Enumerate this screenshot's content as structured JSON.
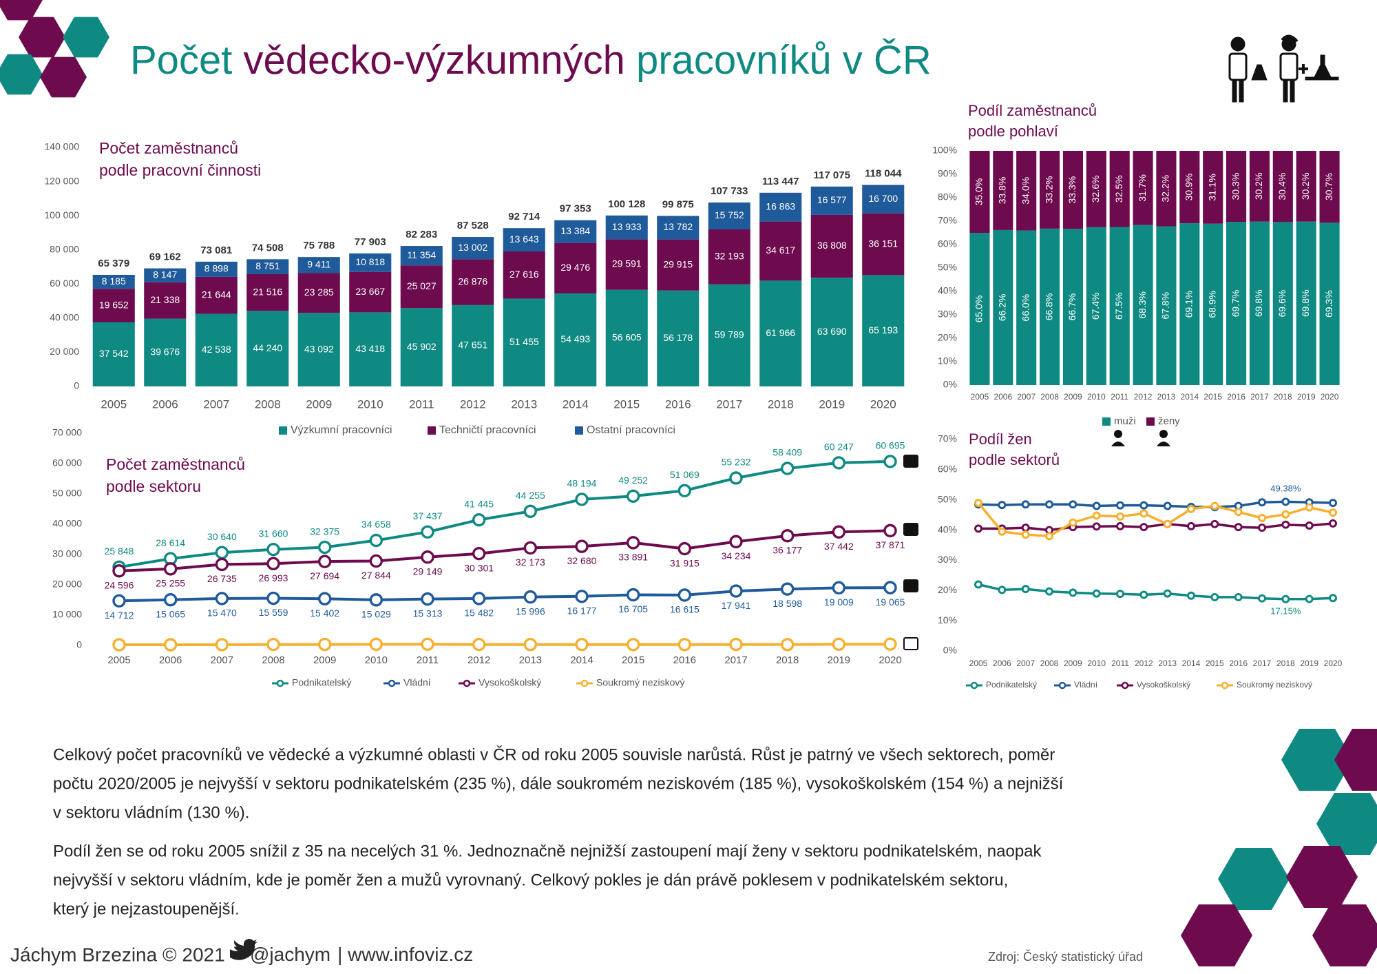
{
  "title_parts": [
    "Počet ",
    "vědecko-výzkumných",
    " pracovníků v ČR"
  ],
  "chart_data": [
    {
      "type": "stacked_bar",
      "title": [
        "Počet zaměstnanců",
        "podle pracovní činnosti"
      ],
      "categories": [
        "2005",
        "2006",
        "2007",
        "2008",
        "2009",
        "2010",
        "2011",
        "2012",
        "2013",
        "2014",
        "2015",
        "2016",
        "2017",
        "2018",
        "2019",
        "2020"
      ],
      "series": [
        {
          "name": "Výzkumní pracovníci",
          "color": "#0f8a83",
          "values": [
            37542,
            39676,
            42538,
            44240,
            43092,
            43418,
            45902,
            47651,
            51455,
            54493,
            56605,
            56178,
            59789,
            61966,
            63690,
            65193
          ],
          "value_labels": [
            "37 542",
            "39 676",
            "42 538",
            "44 240",
            "43 092",
            "43 418",
            "45 902",
            "47 651",
            "51 455",
            "54 493",
            "56 605",
            "56 178",
            "59 789",
            "61 966",
            "63 690",
            "65 193"
          ]
        },
        {
          "name": "Techničtí pracovníci",
          "color": "#6d0b4e",
          "values": [
            19652,
            21338,
            21644,
            21516,
            23285,
            23667,
            25027,
            26876,
            27616,
            29476,
            29591,
            29915,
            32193,
            34617,
            36808,
            36151
          ],
          "value_labels": [
            "19 652",
            "21 338",
            "21 644",
            "21 516",
            "23 285",
            "23 667",
            "25 027",
            "26 876",
            "27 616",
            "29 476",
            "29 591",
            "29 915",
            "32 193",
            "34 617",
            "36 808",
            "36 151"
          ]
        },
        {
          "name": "Ostatní pracovníci",
          "color": "#1f5a9a",
          "values": [
            8185,
            8147,
            8898,
            8751,
            9411,
            10818,
            11354,
            13002,
            13643,
            13384,
            13933,
            13782,
            15752,
            16863,
            16577,
            16700
          ],
          "value_labels": [
            "8 185",
            "8 147",
            "8 898",
            "8 751",
            "9 411",
            "10 818",
            "11 354",
            "13 002",
            "13 643",
            "13 384",
            "13 933",
            "13 782",
            "15 752",
            "16 863",
            "16 577",
            "16 700"
          ]
        }
      ],
      "totals": [
        65379,
        69162,
        73081,
        74508,
        75788,
        77903,
        82283,
        87528,
        92714,
        97353,
        100128,
        99875,
        107733,
        113447,
        117075,
        118044
      ],
      "total_labels": [
        "65 379",
        "69 162",
        "73 081",
        "74 508",
        "75 788",
        "77 903",
        "82 283",
        "87 528",
        "92 714",
        "97 353",
        "100 128",
        "99 875",
        "107 733",
        "113 447",
        "117 075",
        "118 044"
      ],
      "ylim": [
        0,
        140000
      ],
      "yticks": [
        0,
        {
          "value": 20000,
          "label": "20 000"
        },
        {
          "value": 40000,
          "label": "40 000"
        },
        {
          "value": 60000,
          "label": "60 000"
        },
        {
          "value": 80000,
          "label": "80 000"
        },
        {
          "value": 100000,
          "label": "100 000"
        },
        {
          "value": 120000,
          "label": "120 000"
        },
        {
          "value": 140000,
          "label": "140 000"
        }
      ],
      "legend": "bottom"
    },
    {
      "type": "stacked_percent_bar",
      "title": [
        "Podíl zaměstnanců",
        "podle pohlaví"
      ],
      "categories": [
        "2005",
        "2006",
        "2007",
        "2008",
        "2009",
        "2010",
        "2011",
        "2012",
        "2013",
        "2014",
        "2015",
        "2016",
        "2017",
        "2018",
        "2019",
        "2020"
      ],
      "series": [
        {
          "name": "muži",
          "color": "#0f8a83",
          "values": [
            65.0,
            66.2,
            66.0,
            66.8,
            66.7,
            67.4,
            67.5,
            68.3,
            67.8,
            69.1,
            68.9,
            69.7,
            69.8,
            69.6,
            69.8,
            69.3
          ],
          "value_labels": [
            "65.0%",
            "66.2%",
            "66.0%",
            "66.8%",
            "66.7%",
            "67.4%",
            "67.5%",
            "68.3%",
            "67.8%",
            "69.1%",
            "68.9%",
            "69.7%",
            "69.8%",
            "69.6%",
            "69.8%",
            "69.3%"
          ]
        },
        {
          "name": "ženy",
          "color": "#6d0b4e",
          "values": [
            35.0,
            33.8,
            34.0,
            33.2,
            33.3,
            32.6,
            32.5,
            31.7,
            32.2,
            30.9,
            31.1,
            30.3,
            30.2,
            30.4,
            30.2,
            30.7
          ],
          "value_labels": [
            "35.0%",
            "33.8%",
            "34.0%",
            "33.2%",
            "33.3%",
            "32.6%",
            "32.5%",
            "31.7%",
            "32.2%",
            "30.9%",
            "31.1%",
            "30.3%",
            "30.2%",
            "30.4%",
            "30.2%",
            "30.7%"
          ]
        }
      ],
      "ylim": [
        0,
        100
      ],
      "yticks": [
        {
          "value": 0,
          "label": "0%"
        },
        {
          "value": 10,
          "label": "10%"
        },
        {
          "value": 20,
          "label": "20%"
        },
        {
          "value": 30,
          "label": "30%"
        },
        {
          "value": 40,
          "label": "40%"
        },
        {
          "value": 50,
          "label": "50%"
        },
        {
          "value": 60,
          "label": "60%"
        },
        {
          "value": 70,
          "label": "70%"
        },
        {
          "value": 80,
          "label": "80%"
        },
        {
          "value": 90,
          "label": "90%"
        },
        {
          "value": 100,
          "label": "100%"
        }
      ],
      "legend": "bottom"
    },
    {
      "type": "line",
      "title": [
        "Počet zaměstnanců",
        "podle sektoru"
      ],
      "categories": [
        "2005",
        "2006",
        "2007",
        "2008",
        "2009",
        "2010",
        "2011",
        "2012",
        "2013",
        "2014",
        "2015",
        "2016",
        "2017",
        "2018",
        "2019",
        "2020"
      ],
      "series": [
        {
          "name": "Podnikatelský",
          "color": "#0f8a83",
          "values": [
            25848,
            28614,
            30640,
            31660,
            32375,
            34658,
            37437,
            41445,
            44255,
            48194,
            49252,
            51069,
            55232,
            58409,
            60247,
            60695
          ],
          "value_labels": [
            "25 848",
            "28 614",
            "30 640",
            "31 660",
            "32 375",
            "34 658",
            "37 437",
            "41 445",
            "44 255",
            "48 194",
            "49 252",
            "51 069",
            "55 232",
            "58 409",
            "60 247",
            "60 695"
          ]
        },
        {
          "name": "Vládní",
          "color": "#1f5a9a",
          "values": [
            14712,
            15065,
            15470,
            15559,
            15402,
            15029,
            15313,
            15482,
            15996,
            16177,
            16705,
            16615,
            17941,
            18598,
            19009,
            19065
          ],
          "value_labels": [
            "14 712",
            "15 065",
            "15 470",
            "15 559",
            "15 402",
            "15 029",
            "15 313",
            "15 482",
            "15 996",
            "16 177",
            "16 705",
            "16 615",
            "17 941",
            "18 598",
            "19 009",
            "19 065"
          ]
        },
        {
          "name": "Vysokoškolský",
          "color": "#6d0b4e",
          "values": [
            24596,
            25255,
            26735,
            26993,
            27694,
            27844,
            29149,
            30301,
            32173,
            32680,
            33891,
            31915,
            34234,
            36177,
            37442,
            37871
          ],
          "value_labels": [
            "24 596",
            "25 255",
            "26 735",
            "26 993",
            "27 694",
            "27 844",
            "29 149",
            "30 301",
            "32 173",
            "32 680",
            "33 891",
            "31 915",
            "34 234",
            "36 177",
            "37 442",
            "37 871"
          ]
        },
        {
          "name": "Soukromý neziskový",
          "color": "#f5b031",
          "values": [
            223,
            228,
            236,
            296,
            317,
            372,
            384,
            300,
            290,
            302,
            280,
            276,
            327,
            263,
            377,
            414
          ]
        }
      ],
      "ylim": [
        0,
        70000
      ],
      "yticks": [
        0,
        {
          "value": 10000,
          "label": "10 000"
        },
        {
          "value": 20000,
          "label": "20 000"
        },
        {
          "value": 30000,
          "label": "30 000"
        },
        {
          "value": 40000,
          "label": "40 000"
        },
        {
          "value": 50000,
          "label": "50 000"
        },
        {
          "value": 60000,
          "label": "60 000"
        },
        {
          "value": 70000,
          "label": "70 000"
        }
      ],
      "legend": "bottom"
    },
    {
      "type": "line",
      "title": [
        "Podíl žen",
        "podle sektorů"
      ],
      "categories": [
        "2005",
        "2006",
        "2007",
        "2008",
        "2009",
        "2010",
        "2011",
        "2012",
        "2013",
        "2014",
        "2015",
        "2016",
        "2017",
        "2018",
        "2019",
        "2020"
      ],
      "series": [
        {
          "name": "Podnikatelský",
          "color": "#0f8a83",
          "values": [
            22.0,
            20.2,
            20.5,
            19.7,
            19.3,
            19.0,
            18.9,
            18.6,
            19.0,
            18.3,
            17.8,
            17.8,
            17.4,
            17.15,
            17.2,
            17.5
          ],
          "value_labels": [
            null,
            null,
            null,
            null,
            null,
            null,
            null,
            null,
            null,
            null,
            null,
            null,
            null,
            "17.15%",
            null,
            null
          ]
        },
        {
          "name": "Vládní",
          "color": "#1f5a9a",
          "values": [
            48.5,
            48.3,
            48.5,
            48.5,
            48.5,
            48.0,
            48.2,
            48.2,
            48.0,
            47.7,
            47.6,
            48.0,
            49.2,
            49.38,
            49.2,
            49.0
          ],
          "value_labels": [
            null,
            null,
            null,
            null,
            null,
            null,
            null,
            null,
            null,
            null,
            null,
            null,
            null,
            "49.38%",
            null,
            null
          ]
        },
        {
          "name": "Vysokoškolský",
          "color": "#6d0b4e",
          "values": [
            40.5,
            40.5,
            40.8,
            40.0,
            41.0,
            41.2,
            41.3,
            41.0,
            42.0,
            41.3,
            42.0,
            41.0,
            40.8,
            41.8,
            41.5,
            42.2
          ]
        },
        {
          "name": "Soukromý neziskový",
          "color": "#f5b031",
          "values": [
            49.0,
            39.5,
            38.5,
            38.0,
            42.5,
            44.8,
            44.5,
            45.5,
            42.0,
            47.0,
            48.0,
            46.0,
            44.0,
            45.2,
            47.5,
            45.8
          ]
        }
      ],
      "ylim": [
        0,
        70
      ],
      "yticks": [
        {
          "value": 0,
          "label": "0%"
        },
        {
          "value": 10,
          "label": "10%"
        },
        {
          "value": 20,
          "label": "20%"
        },
        {
          "value": 30,
          "label": "30%"
        },
        {
          "value": 40,
          "label": "40%"
        },
        {
          "value": 50,
          "label": "50%"
        },
        {
          "value": 60,
          "label": "60%"
        },
        {
          "value": 70,
          "label": "70%"
        }
      ],
      "legend": "bottom"
    }
  ],
  "paragraphs": [
    [
      "Celkový počet pracovníků ve vědecké a výzkumné oblasti v ČR od roku 2005 souvisle narůstá. Růst je patrný ve všech sektorech, poměr",
      "počtu 2020/2005 je nejvyšší v sektoru podnikatelském (235 %), dále soukromém neziskovém (185 %), vysokoškolském (154 %) a nejnižší",
      "v sektoru vládním (130 %)."
    ],
    [
      "Podíl žen se od roku 2005 snížil z 35 na necelých 31 %. Jednoznačně nejnižší zastoupení mají ženy v sektoru podnikatelském, naopak",
      "nejvyšší v sektoru vládním, kde je poměr žen a mužů vyrovnaný. Celkový pokles je dán právě poklesem v podnikatelském sektoru,",
      "který je nejzastoupenější."
    ]
  ],
  "footer": {
    "author": "Jáchym Brzezina © 2021",
    "handle": "@jachym",
    "site": "| www.infoviz.cz"
  },
  "source": "Zdroj: Český statistický úřad"
}
